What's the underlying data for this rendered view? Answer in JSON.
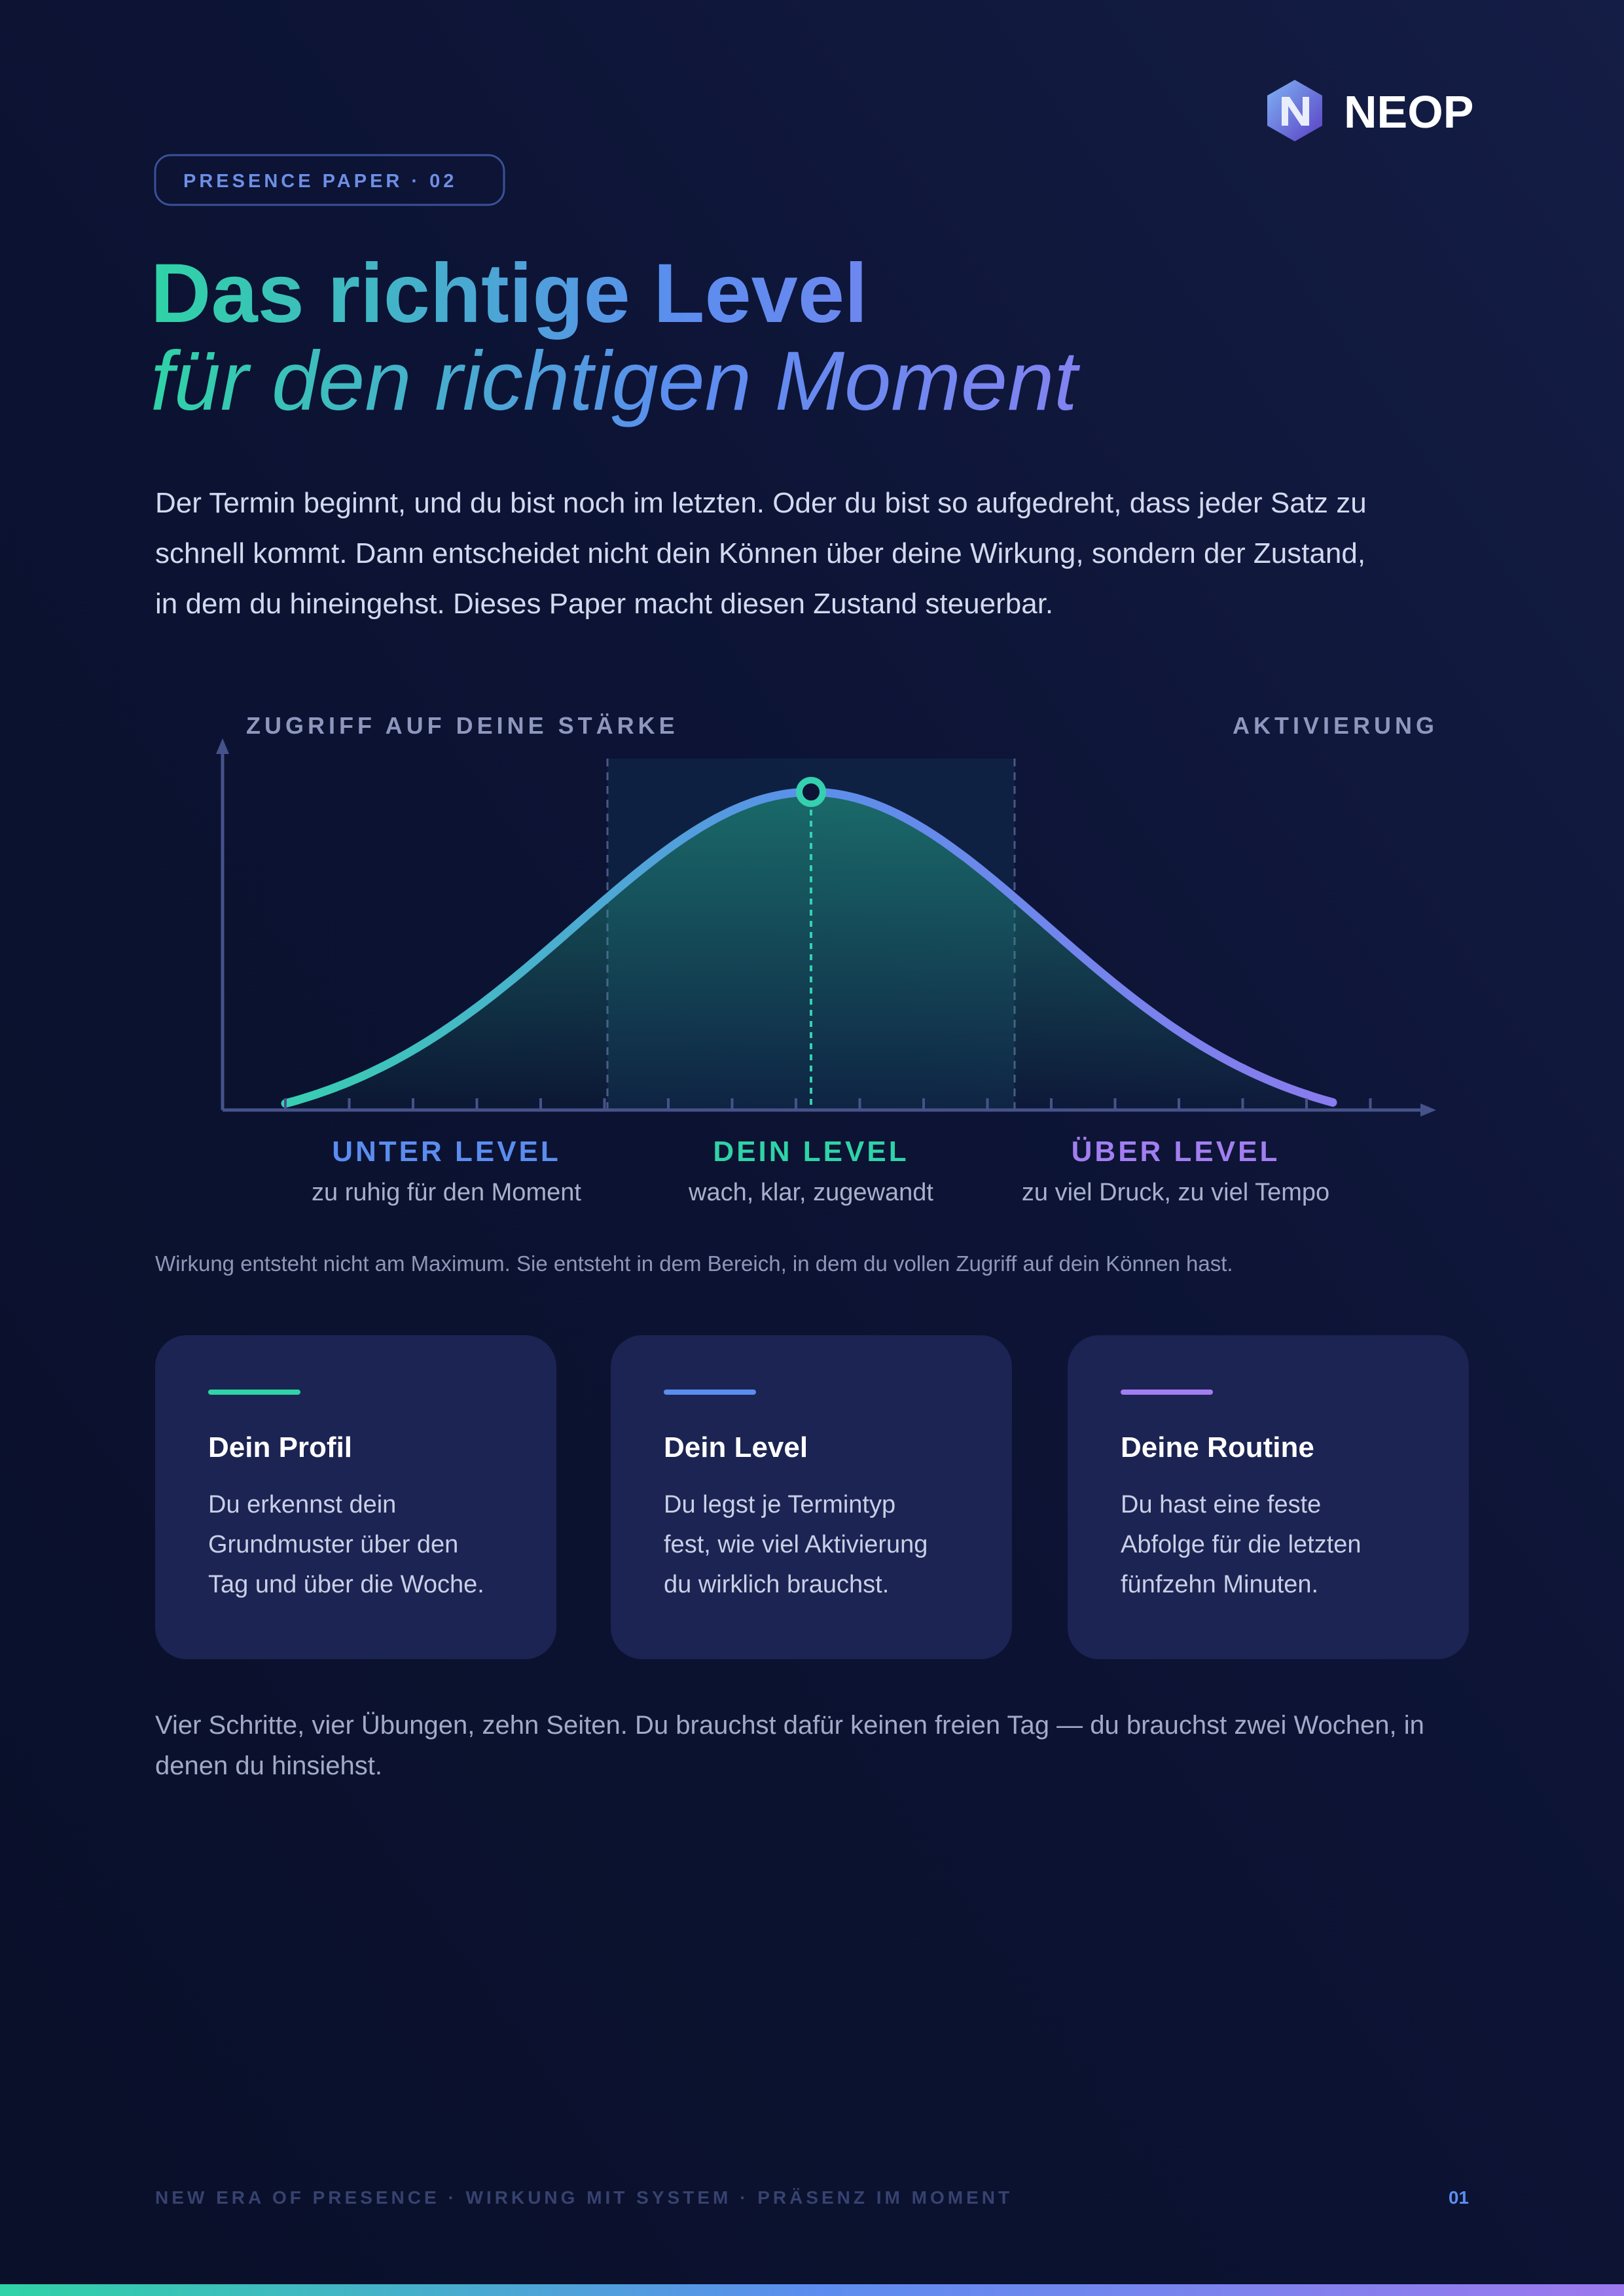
{
  "header": {
    "logo_text": "NEOP",
    "badge": "PRESENCE PAPER · 02",
    "title": "Das richtige Level",
    "subtitle": "für den richtigen Moment"
  },
  "intro": [
    "Der Termin beginnt, und du bist noch im letzten. Oder du bist so aufgedreht, dass jeder Satz zu",
    "schnell kommt. Dann entscheidet nicht dein Können über deine Wirkung, sondern der Zustand,",
    "in dem du hineingehst. Dieses Paper macht diesen Zustand steuerbar."
  ],
  "diagram": {
    "y_axis_label": "ZUGRIFF AUF DEINE STÄRKE",
    "x_axis_label": "AKTIVIERUNG",
    "zones": [
      {
        "label": "UNTER LEVEL",
        "description": "zu ruhig für den Moment"
      },
      {
        "label": "DEIN LEVEL",
        "description": "wach, klar, zugewandt"
      },
      {
        "label": "ÜBER LEVEL",
        "description": "zu viel Druck, zu viel Tempo"
      }
    ]
  },
  "caption": "Wirkung entsteht nicht am Maximum. Sie entsteht in dem Bereich, in dem du vollen Zugriff auf dein Können hast.",
  "cards": [
    {
      "title": "Dein Profil",
      "body": [
        "Du erkennst dein",
        "Grundmuster über den",
        "Tag und über die Woche."
      ]
    },
    {
      "title": "Dein Level",
      "body": [
        "Du legst je Termintyp",
        "fest, wie viel Aktivierung",
        "du wirklich brauchst."
      ]
    },
    {
      "title": "Deine Routine",
      "body": [
        "Du hast eine feste",
        "Abfolge für die letzten",
        "fünfzehn Minuten."
      ]
    }
  ],
  "closing": [
    "Vier Schritte, vier Übungen, zehn Seiten. Du brauchst dafür keinen freien Tag — du brauchst zwei Wochen, in",
    "denen du hinsiehst."
  ],
  "footer": {
    "tagline": "NEW ERA OF PRESENCE · WIRKUNG MIT SYSTEM · PRÄSENZ IM MOMENT",
    "page": "01"
  }
}
